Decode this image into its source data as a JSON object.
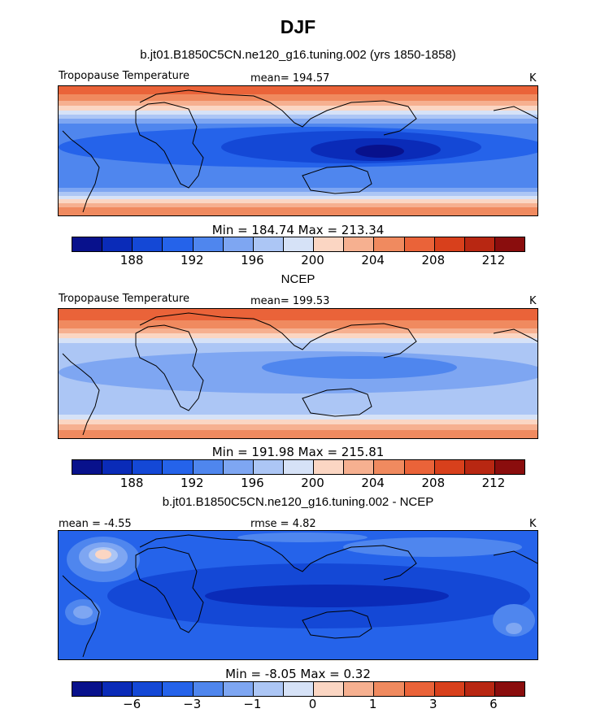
{
  "figure": {
    "title": "DJF"
  },
  "colors": {
    "palette": [
      "#08118c",
      "#0a2bb8",
      "#1448d6",
      "#2563ea",
      "#4f86ee",
      "#7ea6f2",
      "#acc6f5",
      "#d6e2f7",
      "#fbd6c3",
      "#f6b090",
      "#f08a5f",
      "#ea6339",
      "#d8401c",
      "#b82712",
      "#8a0d0d"
    ]
  },
  "chart_data": [
    {
      "type": "heatmap",
      "title": "b.jt01.B1850C5CN.ne120_g16.tuning.002 (yrs 1850-1858)",
      "left_label": "Tropopause Temperature",
      "center_label": "mean= 194.57",
      "right_label": "K",
      "stats": "Min = 184.74 Max = 213.34",
      "levels": [
        "188",
        "192",
        "196",
        "200",
        "204",
        "208",
        "212"
      ],
      "mean": 194.57,
      "min": 184.74,
      "max": 213.34,
      "units": "K"
    },
    {
      "type": "heatmap",
      "title": "NCEP",
      "left_label": "Tropopause Temperature",
      "center_label": "mean= 199.53",
      "right_label": "K",
      "stats": "Min = 191.98 Max = 215.81",
      "levels": [
        "188",
        "192",
        "196",
        "200",
        "204",
        "208",
        "212"
      ],
      "mean": 199.53,
      "min": 191.98,
      "max": 215.81,
      "units": "K"
    },
    {
      "type": "heatmap",
      "title": "b.jt01.B1850C5CN.ne120_g16.tuning.002 - NCEP",
      "left_label": "mean = -4.55",
      "center_label": "rmse = 4.82",
      "right_label": "K",
      "stats": "Min = -8.05 Max = 0.32",
      "levels": [
        "−6",
        "−3",
        "−1",
        "0",
        "1",
        "3",
        "6"
      ],
      "mean": -4.55,
      "rmse": 4.82,
      "min": -8.05,
      "max": 0.32,
      "units": "K"
    }
  ]
}
